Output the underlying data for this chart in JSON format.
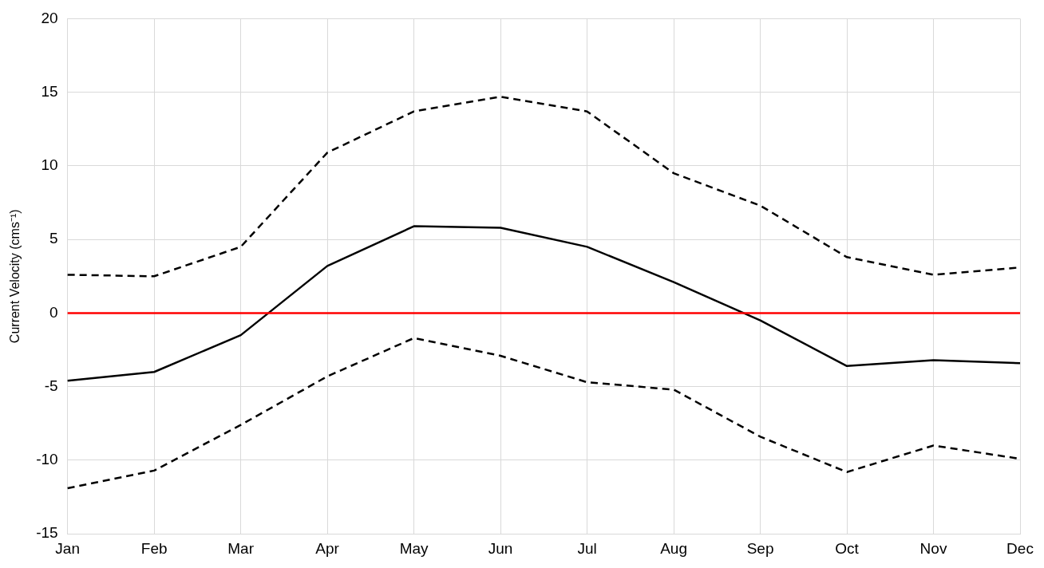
{
  "chart_data": {
    "type": "line",
    "ylabel": "Current Velocity (cms⁻¹)",
    "categories": [
      "Jan",
      "Feb",
      "Mar",
      "Apr",
      "May",
      "Jun",
      "Jul",
      "Aug",
      "Sep",
      "Oct",
      "Nov",
      "Dec"
    ],
    "series": [
      {
        "color": "#000000",
        "line_style": "solid",
        "values": [
          -4.6,
          -4.0,
          -1.5,
          3.2,
          5.9,
          5.8,
          4.5,
          2.1,
          -0.5,
          -3.6,
          -3.2,
          -3.4
        ]
      },
      {
        "color": "#000000",
        "line_style": "dashed",
        "values": [
          2.6,
          2.5,
          4.5,
          10.9,
          13.7,
          14.7,
          13.7,
          9.5,
          7.3,
          3.8,
          2.6,
          3.1
        ]
      },
      {
        "color": "#000000",
        "line_style": "dashed",
        "values": [
          -11.9,
          -10.7,
          -7.6,
          -4.3,
          -1.7,
          -2.9,
          -4.7,
          -5.2,
          -8.4,
          -10.8,
          -9.0,
          -9.9
        ]
      }
    ],
    "ylim": [
      -15,
      20
    ],
    "yticks": [
      -15,
      -10,
      -5,
      0,
      5,
      10,
      15,
      20
    ],
    "grid": true,
    "marker": "none",
    "ref_lines": [
      {
        "axis": "y",
        "value": 0,
        "color": "#ff0000",
        "line_style": "solid"
      }
    ]
  }
}
